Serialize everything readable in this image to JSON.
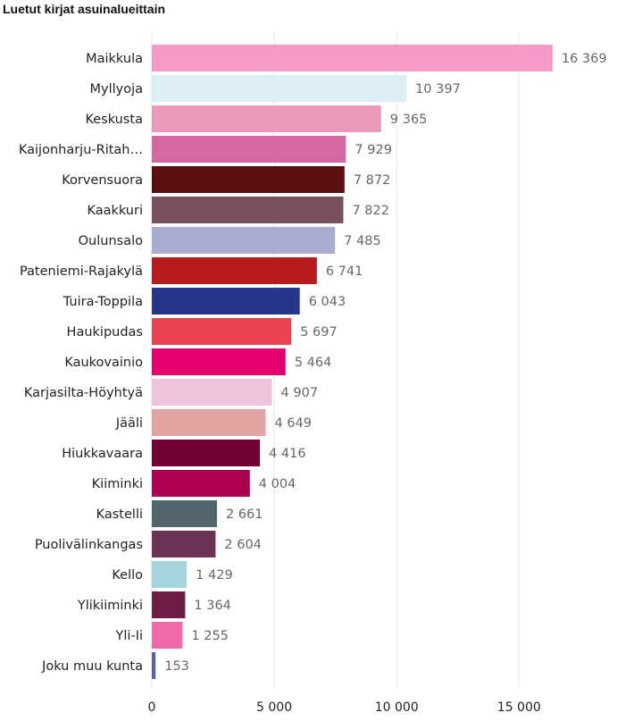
{
  "chart_data": {
    "type": "bar",
    "orientation": "horizontal",
    "title": "Luetut kirjat asuinalueittain",
    "categories": [
      "Maikkula",
      "Myllyoja",
      "Keskusta",
      "Kaijonharju-Ritah…",
      "Korvensuora",
      "Kaakkuri",
      "Oulunsalo",
      "Pateniemi-Rajakylä",
      "Tuira-Toppila",
      "Haukipudas",
      "Kaukovainio",
      "Karjasilta-Höyhtyä",
      "Jääli",
      "Hiukkavaara",
      "Kiiminki",
      "Kastelli",
      "Puolivälinkangas",
      "Kello",
      "Ylikiiminki",
      "Yli-Ii",
      "Joku muu kunta"
    ],
    "values": [
      16369,
      10397,
      9365,
      7929,
      7872,
      7822,
      7485,
      6741,
      6043,
      5697,
      5464,
      4907,
      4649,
      4416,
      4004,
      2661,
      2604,
      1429,
      1364,
      1255,
      153
    ],
    "value_labels": [
      "16 369",
      "10 397",
      "9 365",
      "7 929",
      "7 872",
      "7 822",
      "7 485",
      "6 741",
      "6 043",
      "5 697",
      "5 464",
      "4 907",
      "4 649",
      "4 416",
      "4 004",
      "2 661",
      "2 604",
      "1 429",
      "1 364",
      "1 255",
      "153"
    ],
    "colors": [
      "#f49ac4",
      "#dbeef3",
      "#ea9aba",
      "#d3699f",
      "#5c0f10",
      "#78505f",
      "#a9add0",
      "#b71b1c",
      "#28358c",
      "#e8434f",
      "#e6006e",
      "#ecc3da",
      "#e2a3a3",
      "#720036",
      "#ae0050",
      "#52666c",
      "#6a3452",
      "#a6d5e0",
      "#6d1d47",
      "#f06aaa",
      "#5461ad"
    ],
    "xlim": [
      0,
      17000
    ],
    "xticks": [
      0,
      5000,
      10000,
      15000
    ],
    "xtick_labels": [
      "0",
      "5 000",
      "10 000",
      "15 000"
    ],
    "grid": true,
    "xlabel": "",
    "ylabel": ""
  }
}
